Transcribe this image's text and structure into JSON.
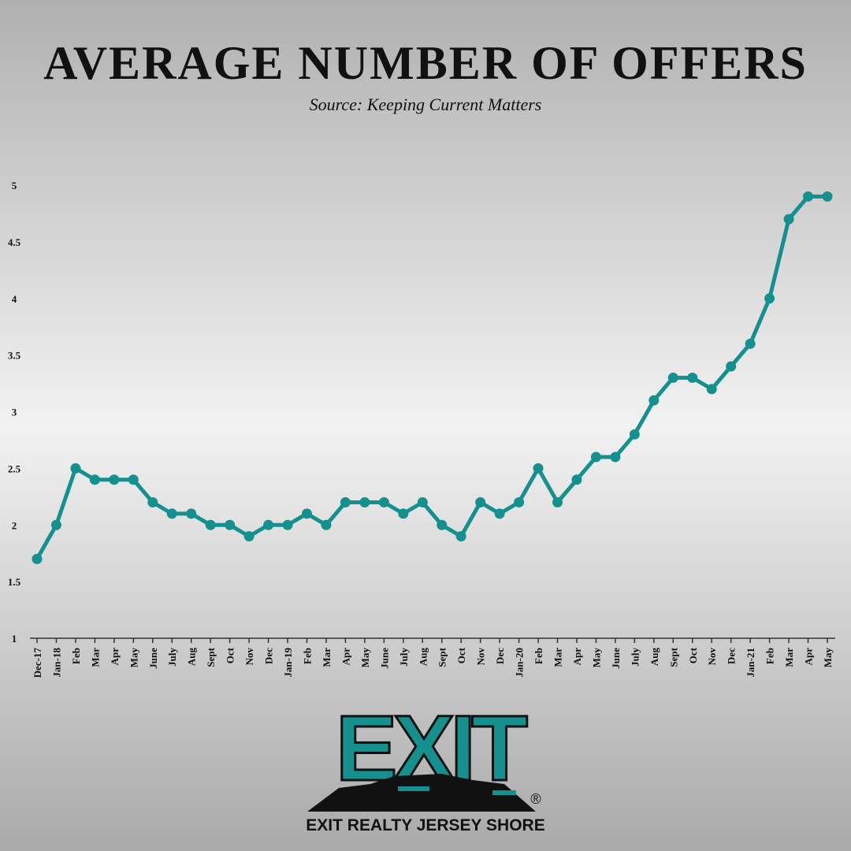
{
  "chart_data": {
    "type": "line",
    "title": "AVERAGE NUMBER OF OFFERS",
    "subtitle": "Source: Keeping Current Matters",
    "categories": [
      "Dec-17",
      "Jan-18",
      "Feb",
      "Mar",
      "Apr",
      "May",
      "June",
      "July",
      "Aug",
      "Sept",
      "Oct",
      "Nov",
      "Dec",
      "Jan-19",
      "Feb",
      "Mar",
      "Apr",
      "May",
      "June",
      "July",
      "Aug",
      "Sept",
      "Oct",
      "Nov",
      "Dec",
      "Jan-20",
      "Feb",
      "Mar",
      "Apr",
      "May",
      "June",
      "July",
      "Aug",
      "Sept",
      "Oct",
      "Nov",
      "Dec",
      "Jan-21",
      "Feb",
      "Mar",
      "Apr",
      "May"
    ],
    "values": [
      1.7,
      2.0,
      2.5,
      2.4,
      2.4,
      2.4,
      2.2,
      2.1,
      2.1,
      2.0,
      2.0,
      1.9,
      2.0,
      2.0,
      2.1,
      2.0,
      2.2,
      2.2,
      2.2,
      2.1,
      2.2,
      2.0,
      1.9,
      2.2,
      2.1,
      2.2,
      2.5,
      2.2,
      2.4,
      2.6,
      2.6,
      2.8,
      3.1,
      3.3,
      3.3,
      3.2,
      3.4,
      3.6,
      4.0,
      4.7,
      4.9,
      4.9
    ],
    "color": "#168f8f",
    "ylim": [
      1,
      5
    ],
    "yticks": [
      1,
      1.5,
      2,
      2.5,
      3,
      3.5,
      4,
      4.5,
      5
    ]
  },
  "logo": {
    "wordmark": "EXIT",
    "registered": "®",
    "caption": "EXIT REALTY JERSEY SHORE"
  }
}
